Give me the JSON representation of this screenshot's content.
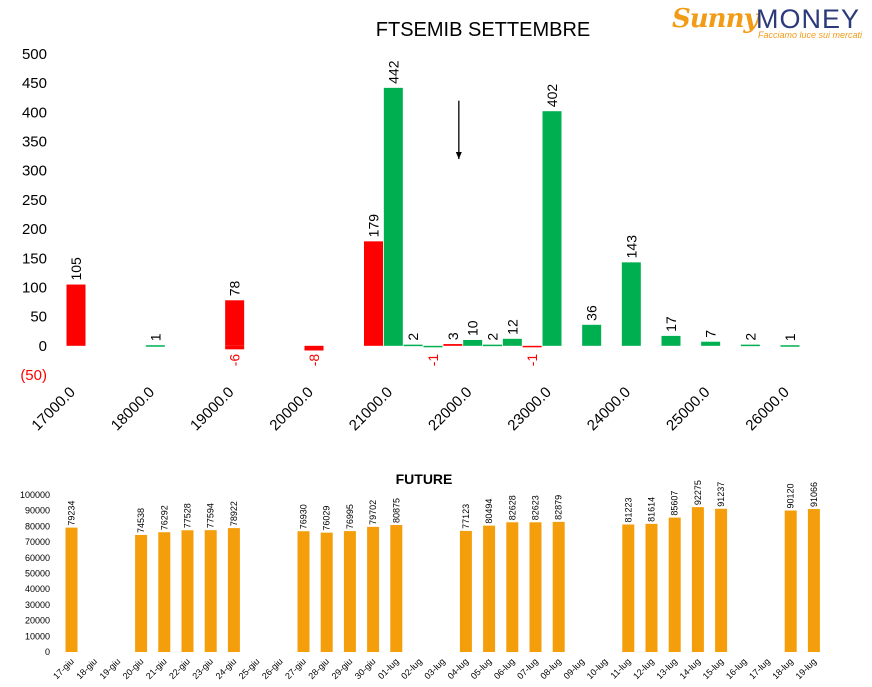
{
  "logo": {
    "brand_part1": "Sunny",
    "brand_part2": "MONEY",
    "tagline": "Facciamo luce sui mercati"
  },
  "chart_data": [
    {
      "type": "bar",
      "title": "FTSEMIB SETTEMBRE",
      "x_tick_labels": [
        "17000.0",
        "18000.0",
        "19000.0",
        "20000.0",
        "21000.0",
        "22000.0",
        "23000.0",
        "24000.0",
        "25000.0",
        "26000.0"
      ],
      "y_tick_labels": [
        "500",
        "450",
        "400",
        "350",
        "300",
        "250",
        "200",
        "150",
        "100",
        "50",
        "0",
        "(50)"
      ],
      "ylim": [
        -50,
        500
      ],
      "bars": [
        {
          "x": 17000,
          "value": 105,
          "color": "#ff0000"
        },
        {
          "x": 18000,
          "value": 1,
          "color": "#00b050"
        },
        {
          "x": 19000,
          "value": -6,
          "color": "#ff0000"
        },
        {
          "x": 19000,
          "value": 78,
          "color": "#ff0000"
        },
        {
          "x": 20000,
          "value": -8,
          "color": "#ff0000"
        },
        {
          "x": 20750,
          "value": 179,
          "color": "#ff0000"
        },
        {
          "x": 21000,
          "value": 442,
          "color": "#00b050"
        },
        {
          "x": 21250,
          "value": 2,
          "color": "#00b050"
        },
        {
          "x": 21500,
          "value": -1,
          "color": "#00b050"
        },
        {
          "x": 21750,
          "value": 3,
          "color": "#ff0000"
        },
        {
          "x": 22000,
          "value": 10,
          "color": "#00b050"
        },
        {
          "x": 22250,
          "value": 2,
          "color": "#00b050"
        },
        {
          "x": 22500,
          "value": 12,
          "color": "#00b050"
        },
        {
          "x": 22750,
          "value": -1,
          "color": "#ff0000"
        },
        {
          "x": 23000,
          "value": 402,
          "color": "#00b050"
        },
        {
          "x": 23500,
          "value": 36,
          "color": "#00b050"
        },
        {
          "x": 24000,
          "value": 143,
          "color": "#00b050"
        },
        {
          "x": 24500,
          "value": 17,
          "color": "#00b050"
        },
        {
          "x": 25000,
          "value": 7,
          "color": "#00b050"
        },
        {
          "x": 25500,
          "value": 2,
          "color": "#00b050"
        },
        {
          "x": 26000,
          "value": 1,
          "color": "#00b050"
        }
      ],
      "annotation": "down-arrow"
    },
    {
      "type": "bar",
      "title": "FUTURE",
      "color": "#f59e0b",
      "ylim": [
        0,
        100000
      ],
      "y_tick_labels": [
        "100000",
        "90000",
        "80000",
        "70000",
        "60000",
        "50000",
        "40000",
        "30000",
        "20000",
        "10000",
        "0"
      ],
      "categories": [
        "17-giu",
        "18-giu",
        "19-giu",
        "20-giu",
        "21-giu",
        "22-giu",
        "23-giu",
        "24-giu",
        "25-giu",
        "26-giu",
        "27-giu",
        "28-giu",
        "29-giu",
        "30-giu",
        "01-lug",
        "02-lug",
        "03-lug",
        "04-lug",
        "05-lug",
        "06-lug",
        "07-lug",
        "08-lug",
        "09-lug",
        "10-lug",
        "11-lug",
        "12-lug",
        "13-lug",
        "14-lug",
        "15-lug",
        "16-lug",
        "17-lug",
        "18-lug",
        "19-lug"
      ],
      "values": [
        79234,
        null,
        null,
        74538,
        76292,
        77528,
        77594,
        78922,
        null,
        null,
        76930,
        76029,
        76995,
        79702,
        80875,
        null,
        null,
        77123,
        80494,
        82628,
        82623,
        82879,
        null,
        null,
        81223,
        81614,
        85607,
        92275,
        91237,
        null,
        null,
        90120,
        91066
      ]
    }
  ]
}
